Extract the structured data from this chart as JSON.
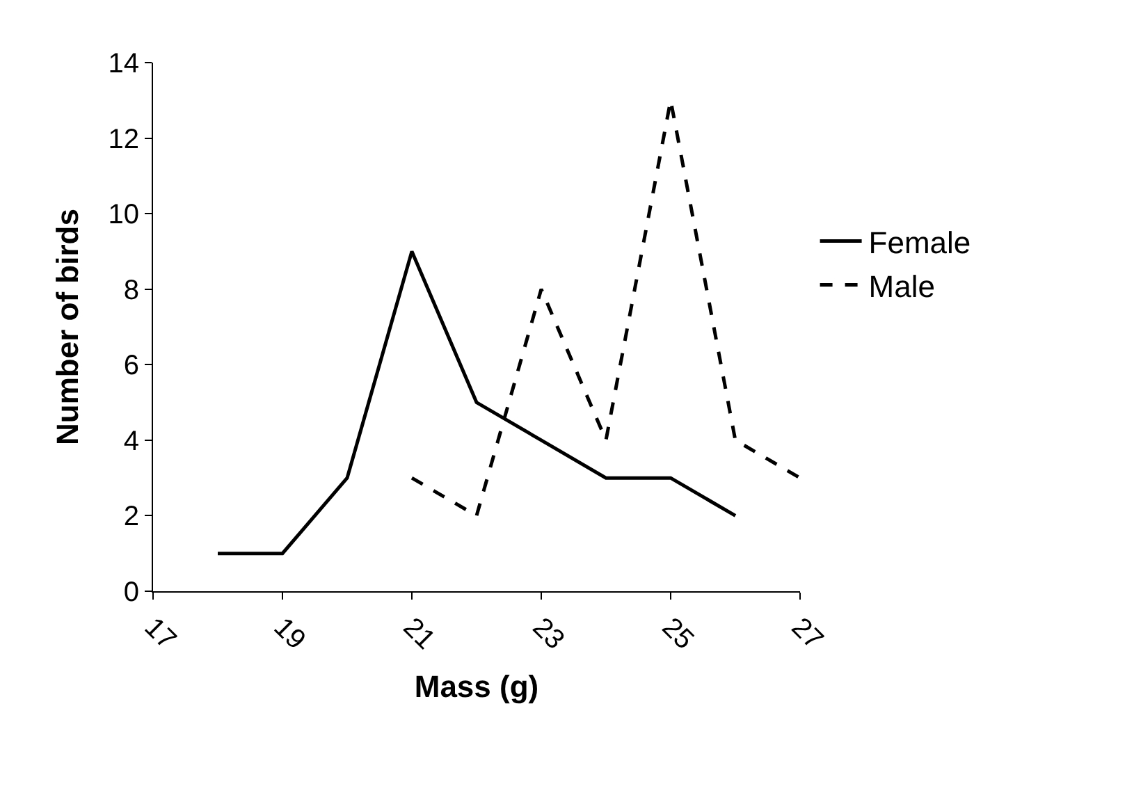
{
  "chart_data": {
    "type": "line",
    "xlabel": "Mass (g)",
    "ylabel": "Number of birds",
    "x": [
      18,
      19,
      20,
      21,
      22,
      23,
      24,
      25,
      26
    ],
    "series": [
      {
        "name": "Female",
        "color": "#000000",
        "line_style": "solid",
        "values": [
          1,
          1,
          3,
          9,
          5,
          4,
          3,
          3,
          2
        ]
      },
      {
        "name": "Male",
        "color": "#000000",
        "line_style": "dashed",
        "x": [
          21,
          22,
          23,
          24,
          25,
          26,
          27
        ],
        "values": [
          3,
          2,
          8,
          4,
          13,
          4,
          3
        ]
      }
    ],
    "xlim": [
      17,
      27
    ],
    "xticks": [
      17,
      19,
      21,
      23,
      25,
      27
    ],
    "ylim": [
      0,
      14
    ],
    "yticks": [
      0,
      2,
      4,
      6,
      8,
      10,
      12,
      14
    ],
    "grid": false,
    "legend": "right",
    "marker": "none"
  }
}
